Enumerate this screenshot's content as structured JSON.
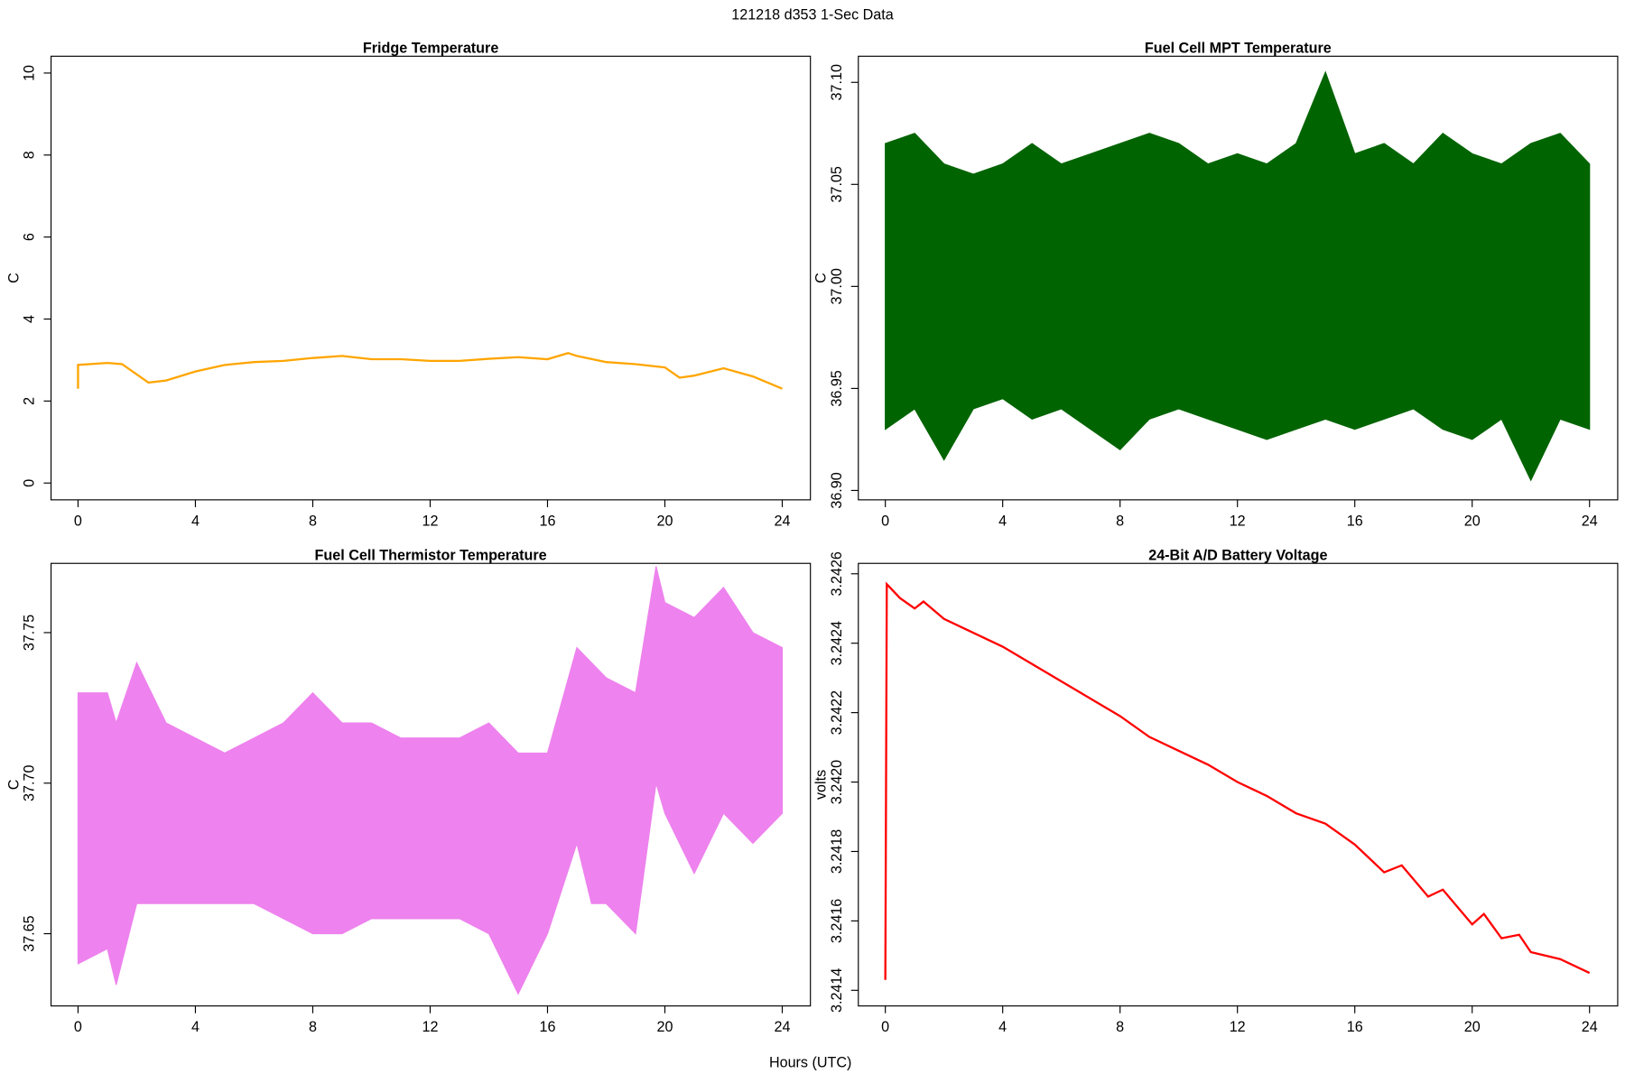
{
  "title": "121218   d353   1-Sec Data",
  "xlabel": "Hours (UTC)",
  "chart_data": [
    {
      "type": "line",
      "title": "Fridge Temperature",
      "ylabel": "C",
      "color": "#ffa500",
      "x": [
        0,
        0,
        1,
        1.5,
        2,
        2.4,
        3,
        4,
        5,
        6,
        7,
        8,
        9,
        10,
        11,
        12,
        13,
        14,
        15,
        16,
        16.7,
        17,
        18,
        19,
        20,
        20.5,
        21,
        22,
        23,
        24
      ],
      "values": [
        2.3,
        2.88,
        2.93,
        2.9,
        2.65,
        2.45,
        2.5,
        2.72,
        2.88,
        2.95,
        2.98,
        3.05,
        3.1,
        3.02,
        3.02,
        2.98,
        2.98,
        3.03,
        3.07,
        3.02,
        3.17,
        3.1,
        2.95,
        2.9,
        2.82,
        2.57,
        2.62,
        2.8,
        2.6,
        2.3
      ],
      "xlim": [
        -0.92,
        24.96
      ],
      "xticks": [
        0,
        4,
        8,
        12,
        16,
        20,
        24
      ],
      "ylim": [
        -0.41,
        10.41
      ],
      "yticks": [
        0,
        2,
        4,
        6,
        8,
        10
      ]
    },
    {
      "type": "band",
      "title": "Fuel Cell MPT Temperature",
      "ylabel": "C",
      "color": "#006400",
      "x": [
        0,
        1,
        2,
        3,
        4,
        5,
        6,
        7,
        8,
        9,
        10,
        11,
        12,
        13,
        14,
        15,
        16,
        17,
        18,
        19,
        20,
        21,
        22,
        23,
        24
      ],
      "low": [
        36.93,
        36.94,
        36.915,
        36.94,
        36.945,
        36.935,
        36.94,
        36.93,
        36.92,
        36.935,
        36.94,
        36.935,
        36.93,
        36.925,
        36.93,
        36.935,
        36.93,
        36.935,
        36.94,
        36.93,
        36.925,
        36.935,
        36.905,
        36.935,
        36.93
      ],
      "high": [
        37.07,
        37.075,
        37.06,
        37.055,
        37.06,
        37.07,
        37.06,
        37.065,
        37.07,
        37.075,
        37.07,
        37.06,
        37.065,
        37.06,
        37.07,
        37.105,
        37.065,
        37.07,
        37.06,
        37.075,
        37.065,
        37.06,
        37.07,
        37.075,
        37.06
      ],
      "xlim": [
        -0.92,
        24.96
      ],
      "xticks": [
        0,
        4,
        8,
        12,
        16,
        20,
        24
      ],
      "ylim": [
        36.8954,
        37.1128
      ],
      "yticks": [
        {
          "value": 36.9,
          "label": "36.90"
        },
        36.95,
        {
          "value": 37,
          "label": "37.00"
        },
        37.05,
        {
          "value": 37.1,
          "label": "37.10"
        }
      ]
    },
    {
      "type": "band",
      "title": "Fuel Cell Thermistor Temperature",
      "ylabel": "C",
      "color": "#ee82ee",
      "x": [
        0,
        1,
        1.3,
        2,
        3,
        4,
        5,
        6,
        7,
        8,
        9,
        10,
        11,
        12,
        13,
        14,
        15,
        16,
        17,
        17.5,
        18,
        19,
        19.7,
        20,
        21,
        22,
        23,
        24
      ],
      "low": [
        37.64,
        37.645,
        37.633,
        37.66,
        37.66,
        37.66,
        37.66,
        37.66,
        37.655,
        37.65,
        37.65,
        37.655,
        37.655,
        37.655,
        37.655,
        37.65,
        37.63,
        37.65,
        37.68,
        37.66,
        37.66,
        37.65,
        37.7,
        37.69,
        37.67,
        37.69,
        37.68,
        37.69
      ],
      "high": [
        37.73,
        37.73,
        37.72,
        37.74,
        37.72,
        37.715,
        37.71,
        37.715,
        37.72,
        37.73,
        37.72,
        37.72,
        37.715,
        37.715,
        37.715,
        37.72,
        37.71,
        37.71,
        37.745,
        37.74,
        37.735,
        37.73,
        37.772,
        37.76,
        37.755,
        37.765,
        37.75,
        37.745
      ],
      "xlim": [
        -0.92,
        24.96
      ],
      "xticks": [
        0,
        4,
        8,
        12,
        16,
        20,
        24
      ],
      "ylim": [
        37.626,
        37.773
      ],
      "yticks": [
        37.65,
        {
          "value": 37.7,
          "label": "37.70"
        },
        37.75
      ]
    },
    {
      "type": "line",
      "title": "24-Bit A/D Battery Voltage",
      "ylabel": "volts",
      "color": "#ff0000",
      "x": [
        0,
        0.05,
        0.5,
        1,
        1.3,
        2,
        3,
        4,
        5,
        6,
        7,
        8,
        9,
        10,
        11,
        12,
        13,
        14,
        15,
        16,
        17,
        17.6,
        18.5,
        19,
        20,
        20.4,
        21,
        21.6,
        22,
        23,
        24
      ],
      "values": [
        3.24143,
        3.24257,
        3.24253,
        3.2425,
        3.24252,
        3.24247,
        3.24243,
        3.24239,
        3.24234,
        3.24229,
        3.24224,
        3.24219,
        3.24213,
        3.24209,
        3.24205,
        3.242,
        3.24196,
        3.24191,
        3.24188,
        3.24182,
        3.24174,
        3.24176,
        3.24167,
        3.24169,
        3.24159,
        3.24162,
        3.24155,
        3.24156,
        3.24151,
        3.24149,
        3.24145
      ],
      "xlim": [
        -0.92,
        24.96
      ],
      "xticks": [
        0,
        4,
        8,
        12,
        16,
        20,
        24
      ],
      "ylim": [
        3.241355,
        3.24263
      ],
      "yticks": [
        3.2414,
        3.2416,
        3.2418,
        {
          "value": 3.242,
          "label": "3.2420"
        },
        3.2422,
        3.2424,
        3.2426
      ]
    }
  ]
}
